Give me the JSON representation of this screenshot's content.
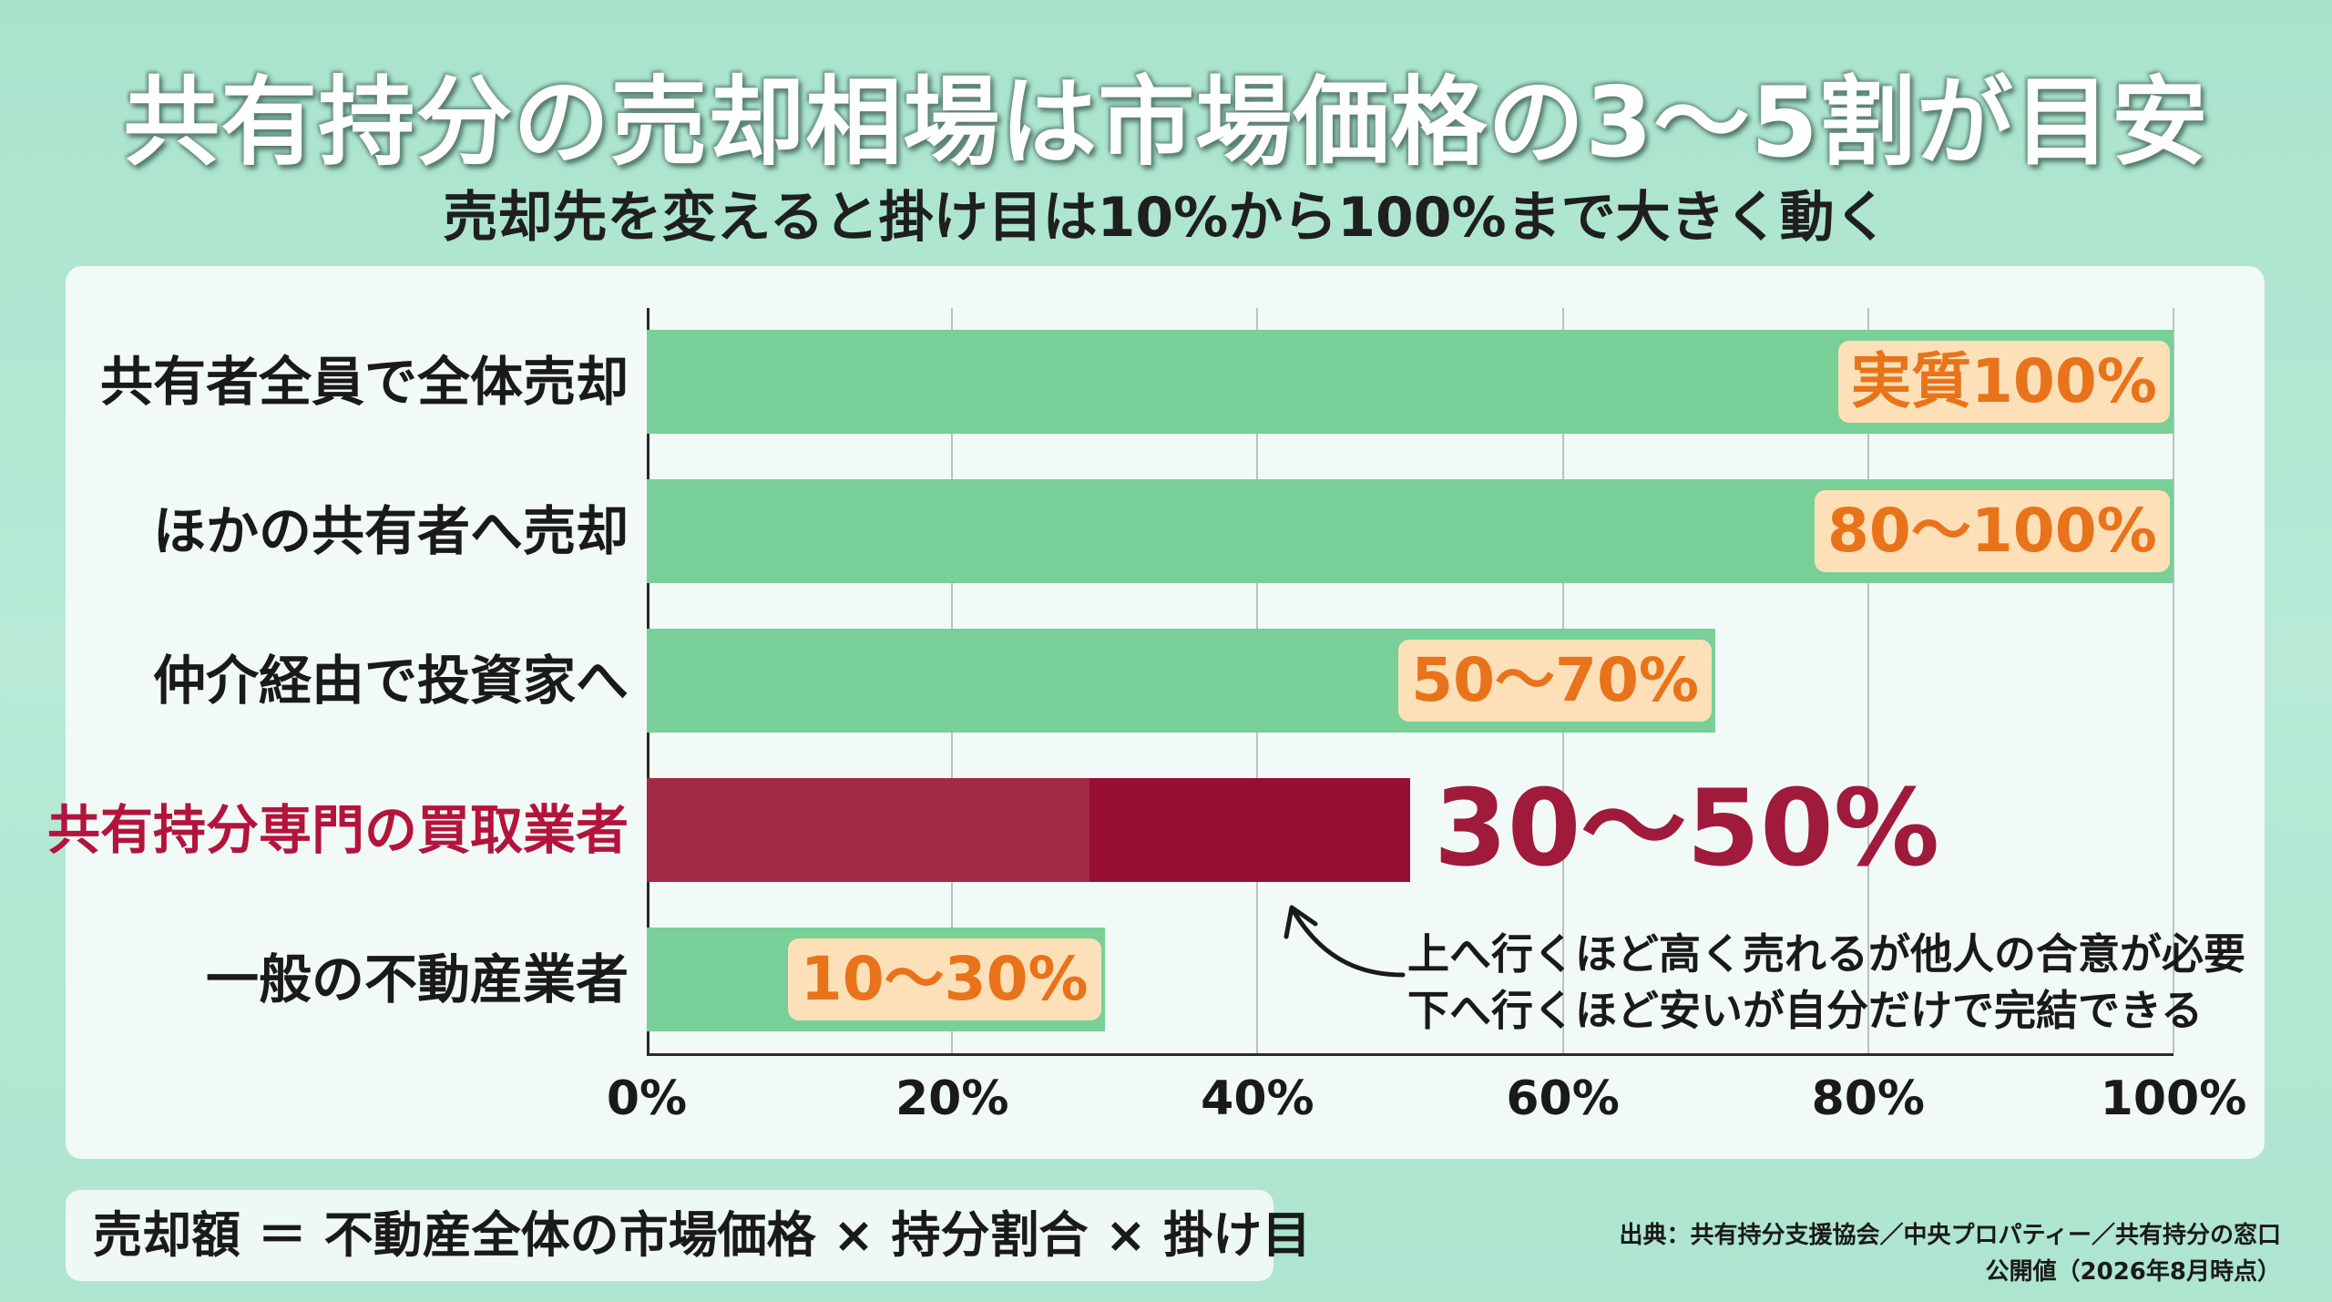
{
  "title": "共有持分の売却相場は市場価格の3〜5割が目安",
  "subtitle": "売却先を変えると掛け目は10%から100%まで大きく動く",
  "chart_data": {
    "type": "bar",
    "orientation": "horizontal",
    "categories": [
      "共有者全員で全体売却",
      "ほかの共有者へ売却",
      "仲介経由で投資家へ",
      "共有持分専門の買取業者",
      "一般の不動産業者"
    ],
    "ranges": [
      [
        100,
        100
      ],
      [
        80,
        100
      ],
      [
        50,
        70
      ],
      [
        30,
        50
      ],
      [
        10,
        30
      ]
    ],
    "labels": [
      "実質100%",
      "80〜100%",
      "50〜70%",
      "30〜50%",
      "10〜30%"
    ],
    "highlight_index": 3,
    "xlim": [
      0,
      100
    ],
    "xticks": [
      "0%",
      "20%",
      "40%",
      "60%",
      "80%",
      "100%"
    ],
    "grid": true,
    "colors": {
      "bar": "#79cf98",
      "highlight": "#a32a45",
      "highlight_dark": "#960f33",
      "label_box": "#fde0b8",
      "label_text": "#e8731a"
    }
  },
  "note": {
    "line1": "上へ行くほど高く売れるが他人の合意が必要",
    "line2": "下へ行くほど安いが自分だけで完結できる"
  },
  "formula": "売却額 ＝ 不動産全体の市場価格 × 持分割合 × 掛け目",
  "source": {
    "line1": "出典：共有持分支援協会／中央プロパティー／共有持分の窓口",
    "line2": "公開値（2026年8月時点）"
  }
}
